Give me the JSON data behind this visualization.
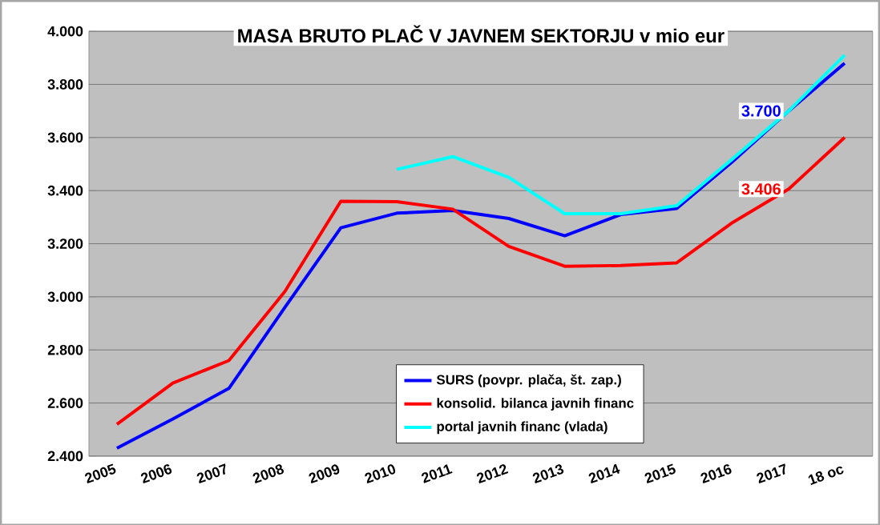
{
  "chart_data": {
    "type": "line",
    "title": "MASA BRUTO PLAČ V JAVNEM SEKTORJU v mio eur",
    "categories": [
      "2005",
      "2006",
      "2007",
      "2008",
      "2009",
      "2010",
      "2011",
      "2012",
      "2013",
      "2014",
      "2015",
      "2016",
      "2017",
      "18 oc"
    ],
    "series": [
      {
        "name": "SURS (povpr. plača, št. zap.)",
        "color": "#0000ff",
        "values": [
          2430,
          2540,
          2655,
          2960,
          3260,
          3315,
          3325,
          3295,
          3230,
          3310,
          3333,
          3510,
          3700,
          3880
        ],
        "value_labels": [
          null,
          null,
          null,
          null,
          null,
          null,
          null,
          null,
          null,
          null,
          null,
          null,
          "3.700",
          null
        ]
      },
      {
        "name": "konsolid. bilanca javnih financ",
        "color": "#ff0000",
        "values": [
          2520,
          2675,
          2760,
          3020,
          3360,
          3358,
          3330,
          3190,
          3115,
          3118,
          3128,
          3280,
          3406,
          3600
        ],
        "value_labels": [
          null,
          null,
          null,
          null,
          null,
          null,
          null,
          null,
          null,
          null,
          null,
          null,
          "3.406",
          null
        ]
      },
      {
        "name": "portal javnih financ (vlada)",
        "color": "#00ffff",
        "values": [
          null,
          null,
          null,
          null,
          null,
          3480,
          3528,
          3450,
          3313,
          3313,
          3343,
          3520,
          3700,
          3910
        ]
      }
    ],
    "ylim": [
      2400,
      4000
    ],
    "yticks": [
      {
        "value": 2400,
        "label": "2.400"
      },
      {
        "value": 2600,
        "label": "2.600"
      },
      {
        "value": 2800,
        "label": "2.800"
      },
      {
        "value": 3000,
        "label": "3.000"
      },
      {
        "value": 3200,
        "label": "3.200"
      },
      {
        "value": 3400,
        "label": "3.400"
      },
      {
        "value": 3600,
        "label": "3.600"
      },
      {
        "value": 3800,
        "label": "3.800"
      },
      {
        "value": 4000,
        "label": "4.000"
      }
    ],
    "grid": "y",
    "legend": "bottom",
    "marker": "none",
    "line_style": "solid"
  }
}
